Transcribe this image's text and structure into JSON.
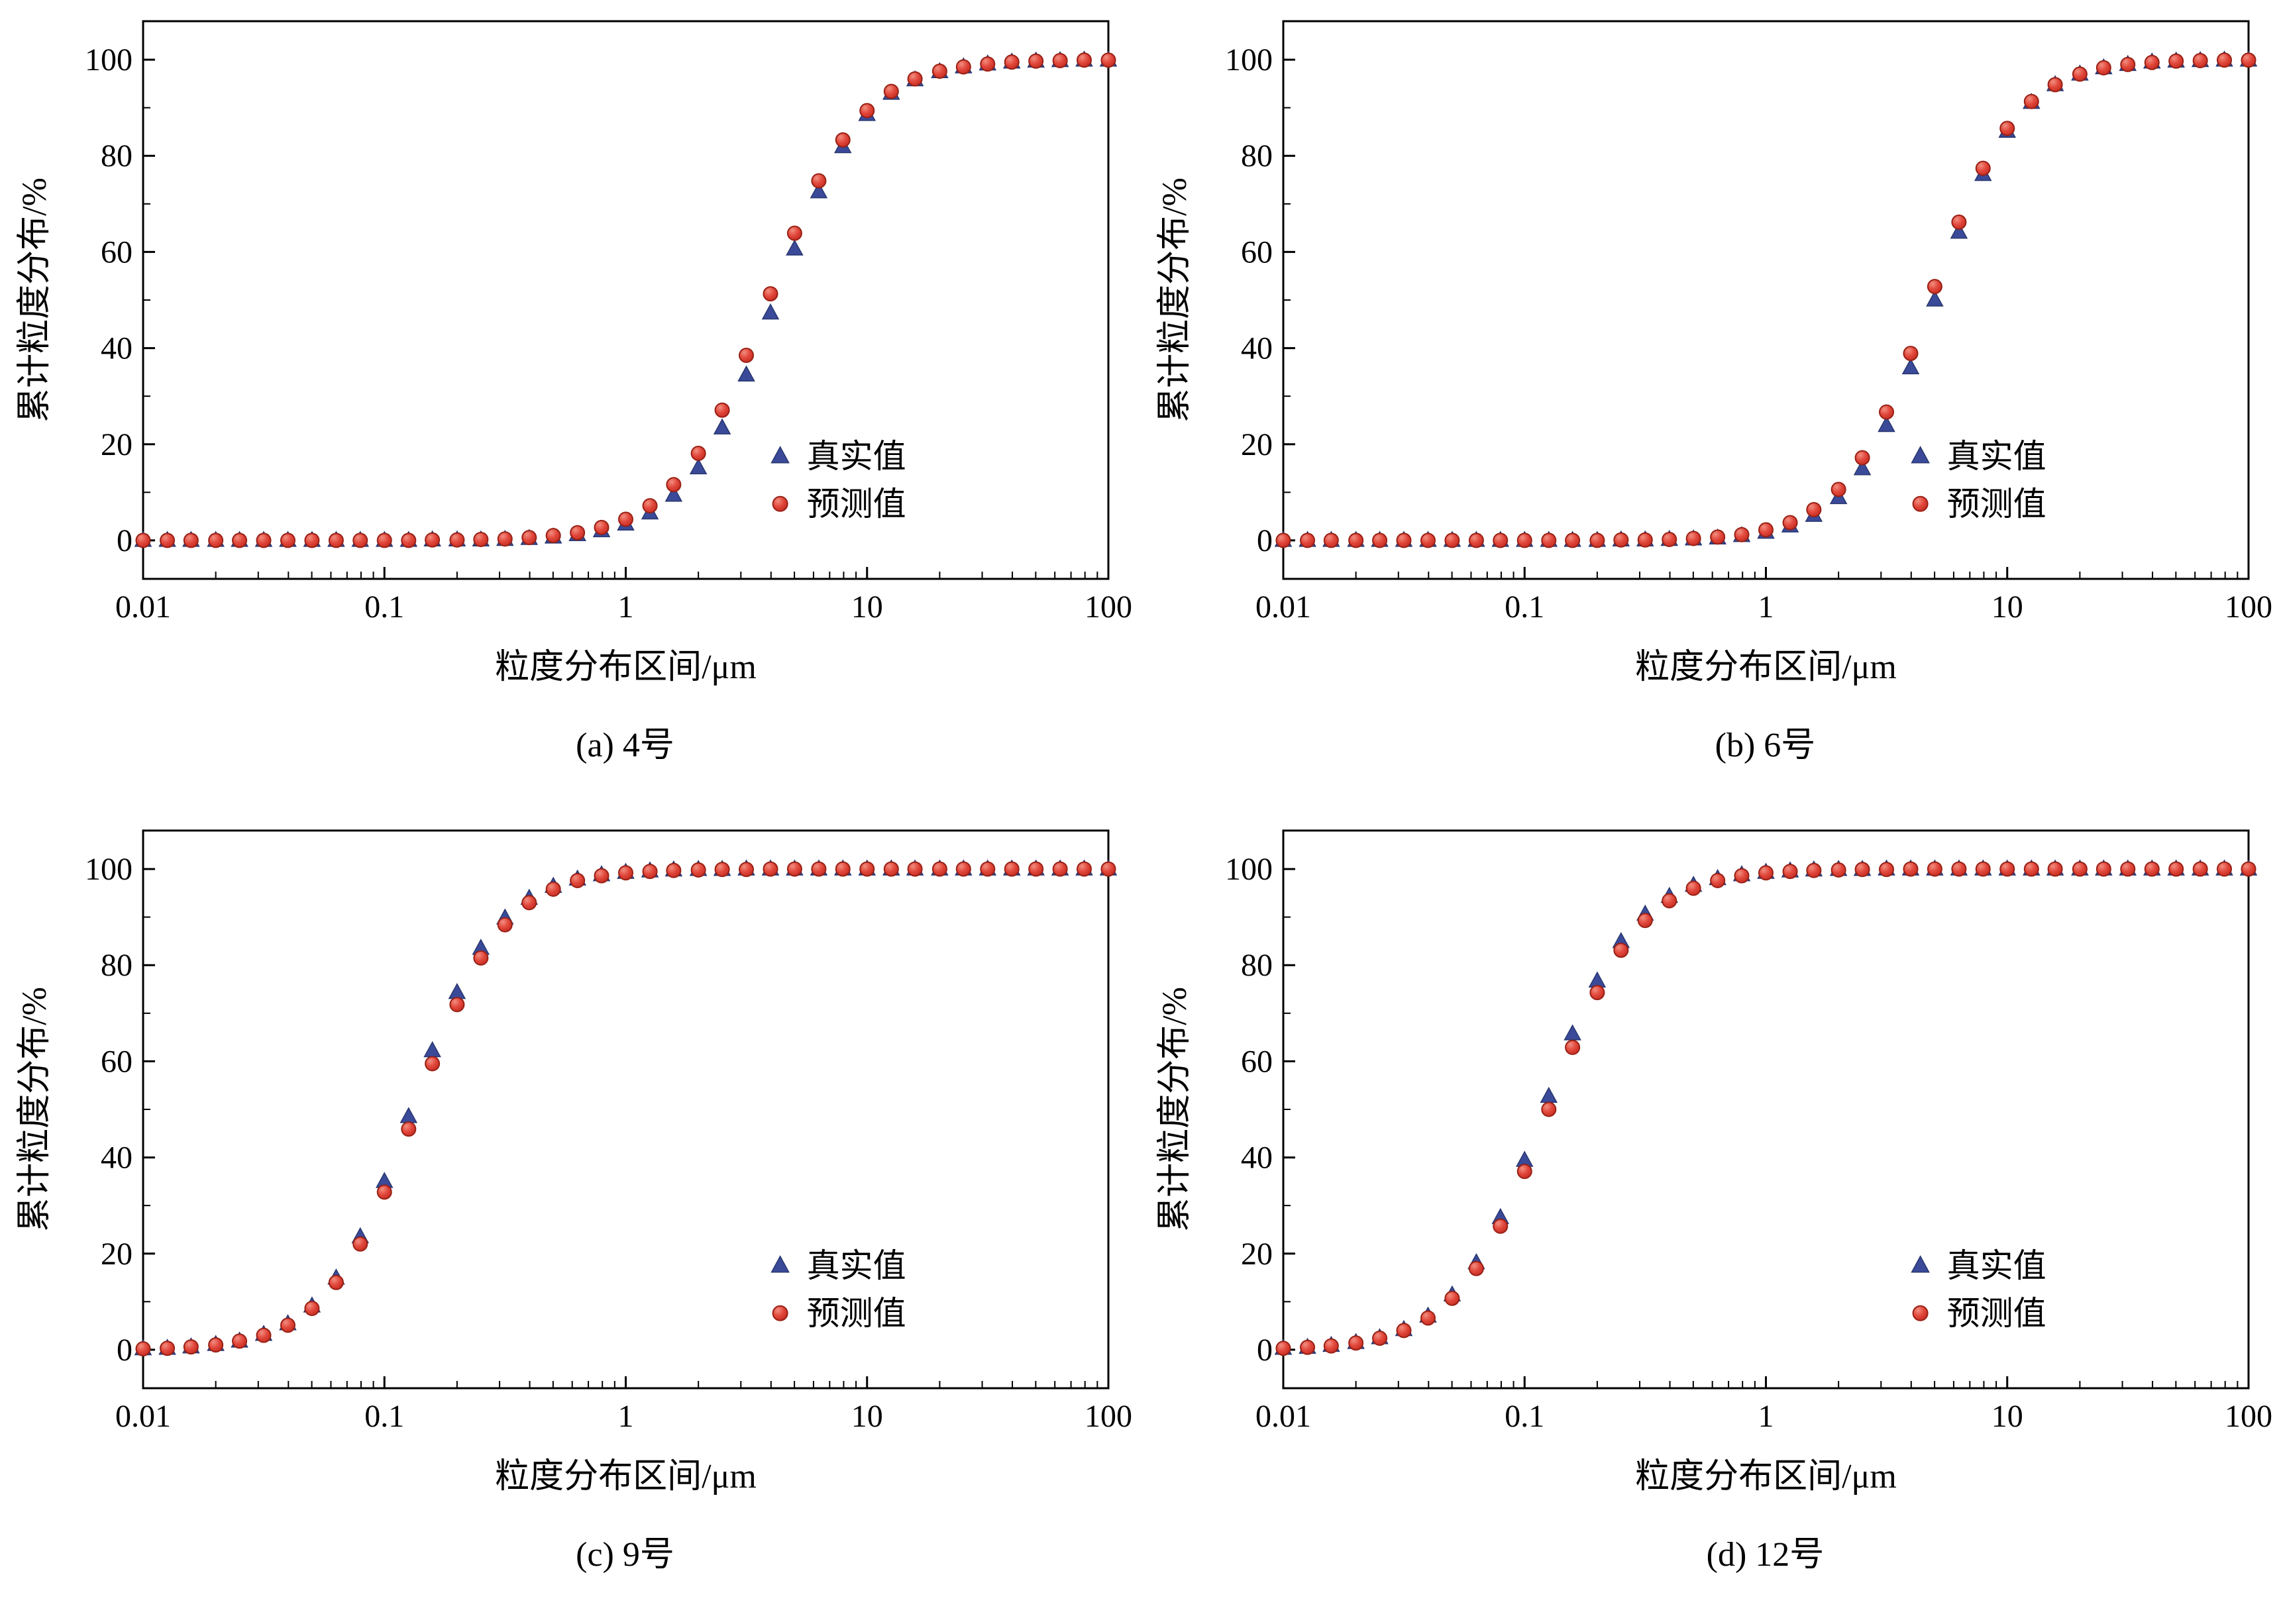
{
  "figure": {
    "axes": {
      "x_tick_values": [
        0.01,
        0.1,
        1,
        10,
        100
      ],
      "x_tick_labels": [
        "0.01",
        "0.1",
        "1",
        "10",
        "100"
      ],
      "y_tick_values": [
        0,
        20,
        40,
        60,
        80,
        100
      ],
      "y_tick_labels": [
        "0",
        "20",
        "40",
        "60",
        "80",
        "100"
      ],
      "y_minor_ticks": [
        10,
        30,
        50,
        70,
        90
      ]
    },
    "colors": {
      "true_fill": "#3a4a99",
      "true_edge": "#28366f",
      "pred_fill": "#e2473b",
      "pred_light": "#f08e80",
      "pred_dark": "#c02a1f",
      "pred_edge": "#992015"
    }
  },
  "chart_data": {
    "type": "scatter",
    "xscale": "log",
    "xlim": [
      0.01,
      100
    ],
    "ylim": [
      0,
      100
    ],
    "xlabel": "粒度分布区间/μm",
    "ylabel": "累计粒度分布/%",
    "x": [
      0.01,
      0.0126,
      0.0158,
      0.02,
      0.0251,
      0.0316,
      0.0398,
      0.0501,
      0.0631,
      0.0794,
      0.1,
      0.126,
      0.158,
      0.2,
      0.251,
      0.316,
      0.398,
      0.501,
      0.631,
      0.794,
      1,
      1.26,
      1.58,
      2,
      2.51,
      3.16,
      3.98,
      5.01,
      6.31,
      7.94,
      10,
      12.6,
      15.8,
      20,
      25.1,
      31.6,
      39.8,
      50.1,
      63.1,
      79.4,
      100
    ],
    "charts": [
      {
        "id": "a",
        "caption": "(a) 4号",
        "series": [
          {
            "name": "真实值",
            "marker": "triangle",
            "values": [
              0,
              0,
              0,
              0,
              0,
              0,
              0,
              0,
              0,
              0,
              0,
              0,
              0.1,
              0.1,
              0.1,
              0.2,
              0.4,
              0.7,
              1.2,
              2.0,
              3.4,
              5.7,
              9.4,
              15.1,
              23.4,
              34.4,
              47.3,
              60.6,
              72.5,
              81.9,
              88.6,
              93.0,
              95.8,
              97.5,
              98.5,
              99.1,
              99.5,
              99.7,
              99.8,
              99.9,
              99.9
            ]
          },
          {
            "name": "预测值",
            "marker": "circle",
            "values": [
              0,
              0,
              0,
              0,
              0,
              0,
              0,
              0,
              0,
              0,
              0,
              0,
              0.1,
              0.1,
              0.2,
              0.3,
              0.6,
              1.0,
              1.6,
              2.7,
              4.4,
              7.2,
              11.6,
              18.1,
              27.1,
              38.5,
              51.3,
              63.9,
              74.8,
              83.3,
              89.4,
              93.4,
              96.0,
              97.6,
              98.5,
              99.1,
              99.5,
              99.7,
              99.8,
              99.9,
              99.9
            ]
          }
        ]
      },
      {
        "id": "b",
        "caption": "(b) 6号",
        "series": [
          {
            "name": "真实值",
            "marker": "triangle",
            "values": [
              0,
              0,
              0,
              0,
              0,
              0,
              0,
              0,
              0,
              0,
              0,
              0,
              0,
              0,
              0.1,
              0.1,
              0.2,
              0.3,
              0.5,
              1.0,
              1.7,
              3.0,
              5.2,
              8.9,
              14.9,
              23.9,
              35.9,
              50.0,
              64.1,
              76.1,
              85.1,
              91.1,
              94.8,
              97.0,
              98.3,
              99.0,
              99.5,
              99.7,
              99.8,
              99.9,
              99.9
            ]
          },
          {
            "name": "预测值",
            "marker": "circle",
            "values": [
              0,
              0,
              0,
              0,
              0,
              0,
              0,
              0,
              0,
              0,
              0,
              0,
              0,
              0,
              0.1,
              0.1,
              0.2,
              0.4,
              0.7,
              1.2,
              2.2,
              3.7,
              6.4,
              10.6,
              17.2,
              26.7,
              38.9,
              52.8,
              66.2,
              77.4,
              85.7,
              91.3,
              94.8,
              97.0,
              98.3,
              99.0,
              99.4,
              99.7,
              99.8,
              99.9,
              99.9
            ]
          }
        ]
      },
      {
        "id": "c",
        "caption": "(c) 9号",
        "series": [
          {
            "name": "真实值",
            "marker": "triangle",
            "values": [
              0.2,
              0.3,
              0.6,
              1.1,
              1.8,
              3.2,
              5.4,
              9.1,
              14.9,
              23.5,
              35.0,
              48.5,
              62.2,
              74.3,
              83.5,
              89.8,
              93.9,
              96.4,
              97.9,
              98.8,
              99.3,
              99.6,
              99.8,
              99.9,
              99.9,
              100,
              100,
              100,
              100,
              100,
              100,
              100,
              100,
              100,
              100,
              100,
              100,
              100,
              100,
              100,
              100
            ]
          },
          {
            "name": "预测值",
            "marker": "circle",
            "values": [
              0.2,
              0.3,
              0.6,
              1.0,
              1.8,
              3.0,
              5.1,
              8.6,
              14.0,
              22.0,
              32.8,
              45.9,
              59.5,
              71.8,
              81.5,
              88.4,
              93.0,
              95.8,
              97.6,
              98.6,
              99.2,
              99.5,
              99.7,
              99.8,
              99.9,
              99.9,
              100,
              100,
              100,
              100,
              100,
              100,
              100,
              100,
              100,
              100,
              100,
              100,
              100,
              100,
              100
            ]
          }
        ]
      },
      {
        "id": "d",
        "caption": "(d) 12号",
        "series": [
          {
            "name": "真实值",
            "marker": "triangle",
            "values": [
              0.3,
              0.5,
              0.9,
              1.5,
              2.5,
              4.2,
              7.0,
              11.4,
              18.1,
              27.5,
              39.4,
              52.7,
              65.7,
              76.7,
              84.9,
              90.6,
              94.3,
              96.6,
              98.0,
              98.8,
              99.3,
              99.6,
              99.8,
              99.9,
              99.9,
              100,
              100,
              100,
              100,
              100,
              100,
              100,
              100,
              100,
              100,
              100,
              100,
              100,
              100,
              100,
              100
            ]
          },
          {
            "name": "预测值",
            "marker": "circle",
            "values": [
              0.3,
              0.5,
              0.8,
              1.4,
              2.4,
              4.0,
              6.6,
              10.7,
              16.9,
              25.7,
              37.1,
              50.0,
              62.9,
              74.3,
              83.1,
              89.3,
              93.4,
              96.0,
              97.6,
              98.6,
              99.2,
              99.5,
              99.7,
              99.8,
              99.9,
              99.9,
              100,
              100,
              100,
              100,
              100,
              100,
              100,
              100,
              100,
              100,
              100,
              100,
              100,
              100,
              100
            ]
          }
        ]
      }
    ]
  }
}
